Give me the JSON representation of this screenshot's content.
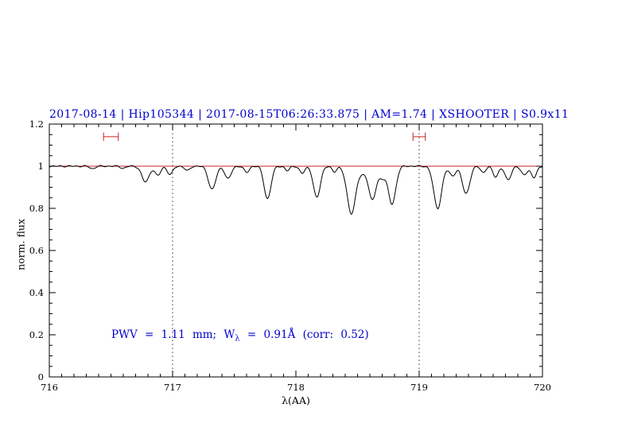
{
  "chart_data": {
    "type": "line",
    "title": "2017-08-14 | Hip105344 | 2017-08-15T06:26:33.875 | AM=1.74 | XSHOOTER | S0.9x11",
    "xlabel": "λ(AA)",
    "ylabel": "norm. flux",
    "xlim": [
      716,
      720
    ],
    "ylim": [
      0,
      1.2
    ],
    "x_ticks": [
      716,
      717,
      718,
      719,
      720
    ],
    "x_tick_labels": [
      "716",
      "717",
      "718",
      "719",
      "720"
    ],
    "y_ticks": [
      0,
      0.2,
      0.4,
      0.6,
      0.8,
      1,
      1.2
    ],
    "y_tick_labels": [
      "0",
      "0.2",
      "0.4",
      "0.6",
      "0.8",
      "1",
      "1.2"
    ],
    "x_minor_step": 0.1,
    "y_minor_step": 0.05,
    "grid": false,
    "guide_lines_x": [
      717,
      719
    ],
    "continuum_level": 1.0,
    "continuum_color": "#cc2222",
    "spectrum_color": "#000000",
    "accent_blue": "#0000cc",
    "sampling_step": 0.008,
    "noise_amplitude": 0.004,
    "absorption_lines": [
      {
        "center": 716.35,
        "depth": 0.012,
        "sigma": 0.02
      },
      {
        "center": 716.6,
        "depth": 0.01,
        "sigma": 0.02
      },
      {
        "center": 716.78,
        "depth": 0.075,
        "sigma": 0.03
      },
      {
        "center": 716.88,
        "depth": 0.045,
        "sigma": 0.022
      },
      {
        "center": 716.98,
        "depth": 0.04,
        "sigma": 0.022
      },
      {
        "center": 717.12,
        "depth": 0.022,
        "sigma": 0.02
      },
      {
        "center": 717.32,
        "depth": 0.11,
        "sigma": 0.03
      },
      {
        "center": 717.45,
        "depth": 0.06,
        "sigma": 0.025
      },
      {
        "center": 717.6,
        "depth": 0.03,
        "sigma": 0.02
      },
      {
        "center": 717.77,
        "depth": 0.155,
        "sigma": 0.028
      },
      {
        "center": 717.93,
        "depth": 0.022,
        "sigma": 0.018
      },
      {
        "center": 718.05,
        "depth": 0.035,
        "sigma": 0.02
      },
      {
        "center": 718.17,
        "depth": 0.15,
        "sigma": 0.028
      },
      {
        "center": 718.31,
        "depth": 0.028,
        "sigma": 0.018
      },
      {
        "center": 718.45,
        "depth": 0.225,
        "sigma": 0.035
      },
      {
        "center": 718.54,
        "depth": 0.03,
        "sigma": 0.025
      },
      {
        "center": 718.62,
        "depth": 0.16,
        "sigma": 0.03
      },
      {
        "center": 718.7,
        "depth": 0.05,
        "sigma": 0.028
      },
      {
        "center": 718.78,
        "depth": 0.18,
        "sigma": 0.03
      },
      {
        "center": 719.15,
        "depth": 0.2,
        "sigma": 0.032
      },
      {
        "center": 719.27,
        "depth": 0.045,
        "sigma": 0.025
      },
      {
        "center": 719.38,
        "depth": 0.13,
        "sigma": 0.03
      },
      {
        "center": 719.52,
        "depth": 0.03,
        "sigma": 0.02
      },
      {
        "center": 719.62,
        "depth": 0.05,
        "sigma": 0.022
      },
      {
        "center": 719.72,
        "depth": 0.065,
        "sigma": 0.025
      },
      {
        "center": 719.85,
        "depth": 0.04,
        "sigma": 0.025
      },
      {
        "center": 719.93,
        "depth": 0.055,
        "sigma": 0.022
      }
    ],
    "markers": [
      {
        "x_center": 716.5,
        "half_width": 0.06,
        "y": 1.14,
        "cap_half_height": 0.02,
        "color": "#cc2222"
      },
      {
        "x_center": 719.0,
        "half_width": 0.05,
        "y": 1.14,
        "cap_half_height": 0.02,
        "color": "#cc2222"
      }
    ],
    "annotation": {
      "part1": "PWV = 1.11 mm; W",
      "sub": "λ",
      "part2": " = 0.91Å (corr: 0.52)"
    },
    "legend": "none"
  }
}
